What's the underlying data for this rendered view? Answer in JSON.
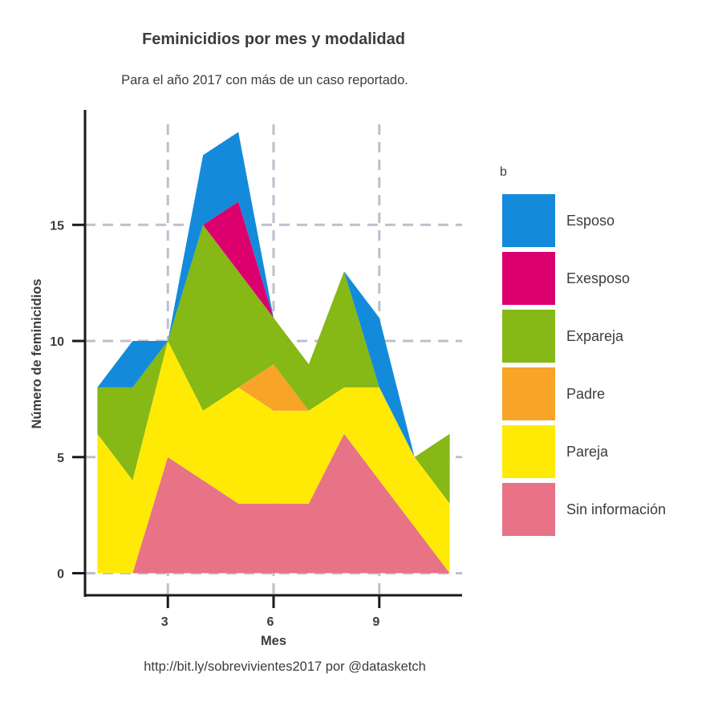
{
  "chart_data": {
    "type": "area",
    "stacked": true,
    "title": "Feminicidios por mes y modalidad",
    "subtitle": "Para el año 2017 con más de un caso reportado.",
    "caption": "http://bit.ly/sobrevivientes2017 por @datasketch",
    "xlabel": "Mes",
    "ylabel": "Número de feminicidios",
    "xlim": [
      0.65,
      11.35
    ],
    "ylim": [
      -0.95,
      19.95
    ],
    "x_ticks": [
      3,
      6,
      9
    ],
    "y_ticks": [
      0,
      5,
      10,
      15
    ],
    "grid": true,
    "legend_title": "b",
    "legend_position": "right",
    "x": [
      1,
      2,
      3,
      4,
      5,
      6,
      7,
      8,
      9,
      10,
      11
    ],
    "series": [
      {
        "name": "Sin información",
        "color": "#E87286",
        "values": [
          0,
          0,
          5,
          4,
          3,
          3,
          3,
          6,
          4,
          2,
          0
        ]
      },
      {
        "name": "Pareja",
        "color": "#FFEA06",
        "values": [
          6,
          4,
          5,
          3,
          5,
          4,
          4,
          2,
          4,
          3,
          3
        ]
      },
      {
        "name": "Padre",
        "color": "#F7A427",
        "values": [
          0,
          0,
          0,
          0,
          0,
          2,
          0,
          0,
          0,
          0,
          0
        ]
      },
      {
        "name": "Expareja",
        "color": "#86B816",
        "values": [
          2,
          4,
          0,
          8,
          5,
          2,
          2,
          5,
          0,
          0,
          3
        ]
      },
      {
        "name": "Exesposo",
        "color": "#DB006E",
        "values": [
          0,
          0,
          0,
          0,
          3,
          0,
          0,
          0,
          0,
          0,
          0
        ]
      },
      {
        "name": "Esposo",
        "color": "#148BDA",
        "values": [
          0,
          2,
          0,
          3,
          3,
          0,
          0,
          0,
          3,
          0,
          0
        ]
      }
    ],
    "legend_order": [
      "Esposo",
      "Exesposo",
      "Expareja",
      "Padre",
      "Pareja",
      "Sin información"
    ]
  }
}
